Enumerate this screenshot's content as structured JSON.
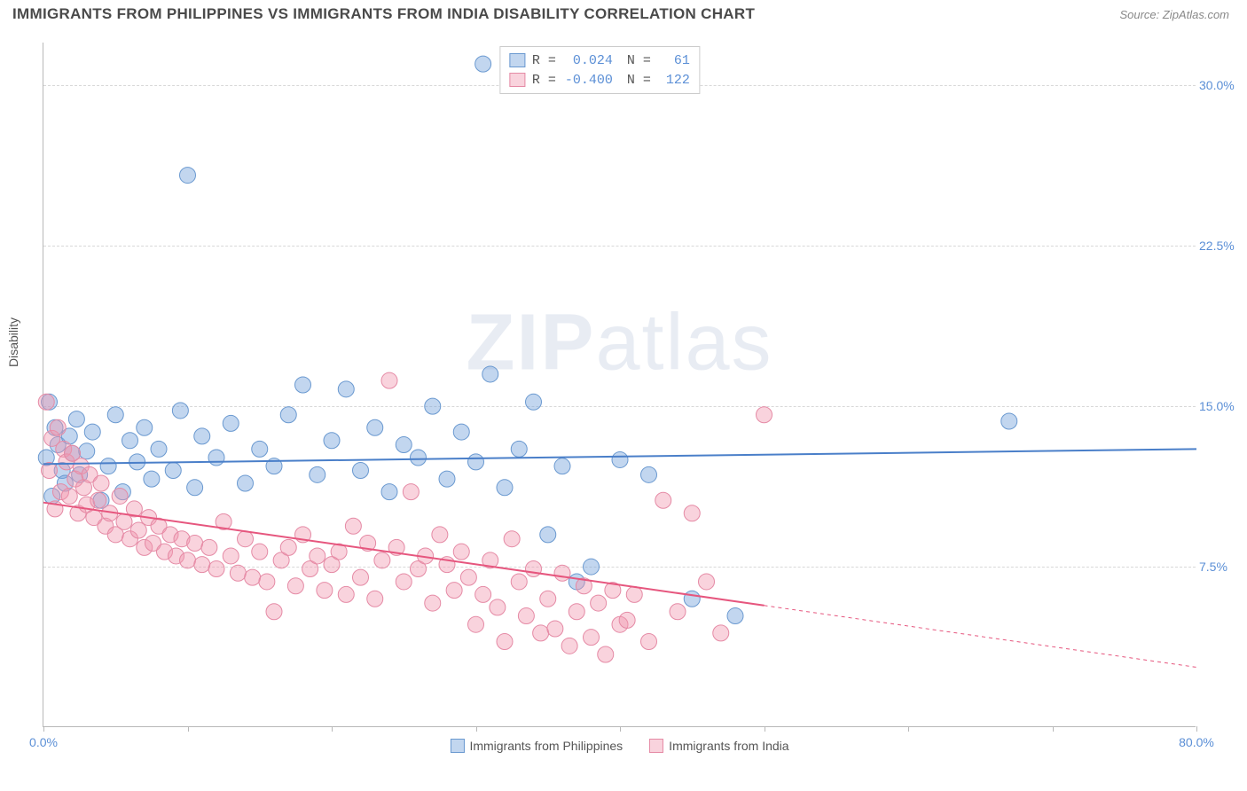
{
  "header": {
    "title": "IMMIGRANTS FROM PHILIPPINES VS IMMIGRANTS FROM INDIA DISABILITY CORRELATION CHART",
    "source": "Source: ZipAtlas.com"
  },
  "chart": {
    "type": "scatter",
    "ylabel": "Disability",
    "watermark": "ZIPatlas",
    "background_color": "#ffffff",
    "grid_color": "#d8d8d8",
    "axis_color": "#b8b8b8",
    "tick_label_color": "#5b8fd6",
    "xlim": [
      0,
      80
    ],
    "ylim": [
      0,
      32
    ],
    "yticks": [
      7.5,
      15.0,
      22.5,
      30.0
    ],
    "ytick_labels": [
      "7.5%",
      "15.0%",
      "22.5%",
      "30.0%"
    ],
    "xticks": [
      0,
      10,
      20,
      30,
      40,
      50,
      60,
      70,
      80
    ],
    "xtick_labels_shown": {
      "0": "0.0%",
      "80": "80.0%"
    },
    "series": [
      {
        "name": "Immigrants from Philippines",
        "color_fill": "rgba(120,165,220,0.45)",
        "color_stroke": "#6a99d0",
        "marker_radius": 9,
        "trend": {
          "x1": 0,
          "y1": 12.3,
          "x2": 80,
          "y2": 13.0,
          "solid_until_x": 80,
          "line_color": "#4a7fc9",
          "line_width": 2
        },
        "stats": {
          "R": "0.024",
          "N": "61"
        },
        "points": [
          [
            0.2,
            12.6
          ],
          [
            0.4,
            15.2
          ],
          [
            0.6,
            10.8
          ],
          [
            0.8,
            14.0
          ],
          [
            1.0,
            13.2
          ],
          [
            1.3,
            12.0
          ],
          [
            1.5,
            11.4
          ],
          [
            1.8,
            13.6
          ],
          [
            2.0,
            12.8
          ],
          [
            2.3,
            14.4
          ],
          [
            2.5,
            11.8
          ],
          [
            3.0,
            12.9
          ],
          [
            3.4,
            13.8
          ],
          [
            4.0,
            10.6
          ],
          [
            4.5,
            12.2
          ],
          [
            5.0,
            14.6
          ],
          [
            5.5,
            11.0
          ],
          [
            6.0,
            13.4
          ],
          [
            6.5,
            12.4
          ],
          [
            7.0,
            14.0
          ],
          [
            7.5,
            11.6
          ],
          [
            8.0,
            13.0
          ],
          [
            9.0,
            12.0
          ],
          [
            9.5,
            14.8
          ],
          [
            10.0,
            25.8
          ],
          [
            10.5,
            11.2
          ],
          [
            11.0,
            13.6
          ],
          [
            12.0,
            12.6
          ],
          [
            13.0,
            14.2
          ],
          [
            14.0,
            11.4
          ],
          [
            15.0,
            13.0
          ],
          [
            16.0,
            12.2
          ],
          [
            17.0,
            14.6
          ],
          [
            18.0,
            16.0
          ],
          [
            19.0,
            11.8
          ],
          [
            20.0,
            13.4
          ],
          [
            21.0,
            15.8
          ],
          [
            22.0,
            12.0
          ],
          [
            23.0,
            14.0
          ],
          [
            24.0,
            11.0
          ],
          [
            25.0,
            13.2
          ],
          [
            26.0,
            12.6
          ],
          [
            27.0,
            15.0
          ],
          [
            28.0,
            11.6
          ],
          [
            29.0,
            13.8
          ],
          [
            30.0,
            12.4
          ],
          [
            30.5,
            31.0
          ],
          [
            31.0,
            16.5
          ],
          [
            32.0,
            11.2
          ],
          [
            33.0,
            13.0
          ],
          [
            34.0,
            15.2
          ],
          [
            35.0,
            9.0
          ],
          [
            36.0,
            12.2
          ],
          [
            37.0,
            6.8
          ],
          [
            38.0,
            7.5
          ],
          [
            40.0,
            12.5
          ],
          [
            42.0,
            11.8
          ],
          [
            45.0,
            6.0
          ],
          [
            48.0,
            5.2
          ],
          [
            67.0,
            14.3
          ]
        ]
      },
      {
        "name": "Immigrants from India",
        "color_fill": "rgba(240,150,175,0.42)",
        "color_stroke": "#e58aa5",
        "marker_radius": 9,
        "trend": {
          "x1": 0,
          "y1": 10.5,
          "x2": 80,
          "y2": 2.8,
          "solid_until_x": 50,
          "line_color": "#e6567e",
          "line_width": 2
        },
        "stats": {
          "R": "-0.400",
          "N": "122"
        },
        "points": [
          [
            0.2,
            15.2
          ],
          [
            0.4,
            12.0
          ],
          [
            0.6,
            13.5
          ],
          [
            0.8,
            10.2
          ],
          [
            1.0,
            14.0
          ],
          [
            1.2,
            11.0
          ],
          [
            1.4,
            13.0
          ],
          [
            1.6,
            12.4
          ],
          [
            1.8,
            10.8
          ],
          [
            2.0,
            12.8
          ],
          [
            2.2,
            11.6
          ],
          [
            2.4,
            10.0
          ],
          [
            2.6,
            12.2
          ],
          [
            2.8,
            11.2
          ],
          [
            3.0,
            10.4
          ],
          [
            3.2,
            11.8
          ],
          [
            3.5,
            9.8
          ],
          [
            3.8,
            10.6
          ],
          [
            4.0,
            11.4
          ],
          [
            4.3,
            9.4
          ],
          [
            4.6,
            10.0
          ],
          [
            5.0,
            9.0
          ],
          [
            5.3,
            10.8
          ],
          [
            5.6,
            9.6
          ],
          [
            6.0,
            8.8
          ],
          [
            6.3,
            10.2
          ],
          [
            6.6,
            9.2
          ],
          [
            7.0,
            8.4
          ],
          [
            7.3,
            9.8
          ],
          [
            7.6,
            8.6
          ],
          [
            8.0,
            9.4
          ],
          [
            8.4,
            8.2
          ],
          [
            8.8,
            9.0
          ],
          [
            9.2,
            8.0
          ],
          [
            9.6,
            8.8
          ],
          [
            10.0,
            7.8
          ],
          [
            10.5,
            8.6
          ],
          [
            11.0,
            7.6
          ],
          [
            11.5,
            8.4
          ],
          [
            12.0,
            7.4
          ],
          [
            12.5,
            9.6
          ],
          [
            13.0,
            8.0
          ],
          [
            13.5,
            7.2
          ],
          [
            14.0,
            8.8
          ],
          [
            14.5,
            7.0
          ],
          [
            15.0,
            8.2
          ],
          [
            15.5,
            6.8
          ],
          [
            16.0,
            5.4
          ],
          [
            16.5,
            7.8
          ],
          [
            17.0,
            8.4
          ],
          [
            17.5,
            6.6
          ],
          [
            18.0,
            9.0
          ],
          [
            18.5,
            7.4
          ],
          [
            19.0,
            8.0
          ],
          [
            19.5,
            6.4
          ],
          [
            20.0,
            7.6
          ],
          [
            20.5,
            8.2
          ],
          [
            21.0,
            6.2
          ],
          [
            21.5,
            9.4
          ],
          [
            22.0,
            7.0
          ],
          [
            22.5,
            8.6
          ],
          [
            23.0,
            6.0
          ],
          [
            23.5,
            7.8
          ],
          [
            24.0,
            16.2
          ],
          [
            24.5,
            8.4
          ],
          [
            25.0,
            6.8
          ],
          [
            25.5,
            11.0
          ],
          [
            26.0,
            7.4
          ],
          [
            26.5,
            8.0
          ],
          [
            27.0,
            5.8
          ],
          [
            27.5,
            9.0
          ],
          [
            28.0,
            7.6
          ],
          [
            28.5,
            6.4
          ],
          [
            29.0,
            8.2
          ],
          [
            29.5,
            7.0
          ],
          [
            30.0,
            4.8
          ],
          [
            30.5,
            6.2
          ],
          [
            31.0,
            7.8
          ],
          [
            31.5,
            5.6
          ],
          [
            32.0,
            4.0
          ],
          [
            32.5,
            8.8
          ],
          [
            33.0,
            6.8
          ],
          [
            33.5,
            5.2
          ],
          [
            34.0,
            7.4
          ],
          [
            34.5,
            4.4
          ],
          [
            35.0,
            6.0
          ],
          [
            35.5,
            4.6
          ],
          [
            36.0,
            7.2
          ],
          [
            36.5,
            3.8
          ],
          [
            37.0,
            5.4
          ],
          [
            37.5,
            6.6
          ],
          [
            38.0,
            4.2
          ],
          [
            38.5,
            5.8
          ],
          [
            39.0,
            3.4
          ],
          [
            39.5,
            6.4
          ],
          [
            40.0,
            4.8
          ],
          [
            40.5,
            5.0
          ],
          [
            41.0,
            6.2
          ],
          [
            42.0,
            4.0
          ],
          [
            43.0,
            10.6
          ],
          [
            44.0,
            5.4
          ],
          [
            45.0,
            10.0
          ],
          [
            46.0,
            6.8
          ],
          [
            47.0,
            4.4
          ],
          [
            50.0,
            14.6
          ]
        ]
      }
    ],
    "stats_box": {
      "rows": [
        {
          "swatch_fill": "rgba(120,165,220,0.45)",
          "swatch_stroke": "#6a99d0",
          "r_label": "R =",
          "r_value": "0.024",
          "n_label": "N =",
          "n_value": "61"
        },
        {
          "swatch_fill": "rgba(240,150,175,0.42)",
          "swatch_stroke": "#e58aa5",
          "r_label": "R =",
          "r_value": "-0.400",
          "n_label": "N =",
          "n_value": "122"
        }
      ]
    }
  }
}
